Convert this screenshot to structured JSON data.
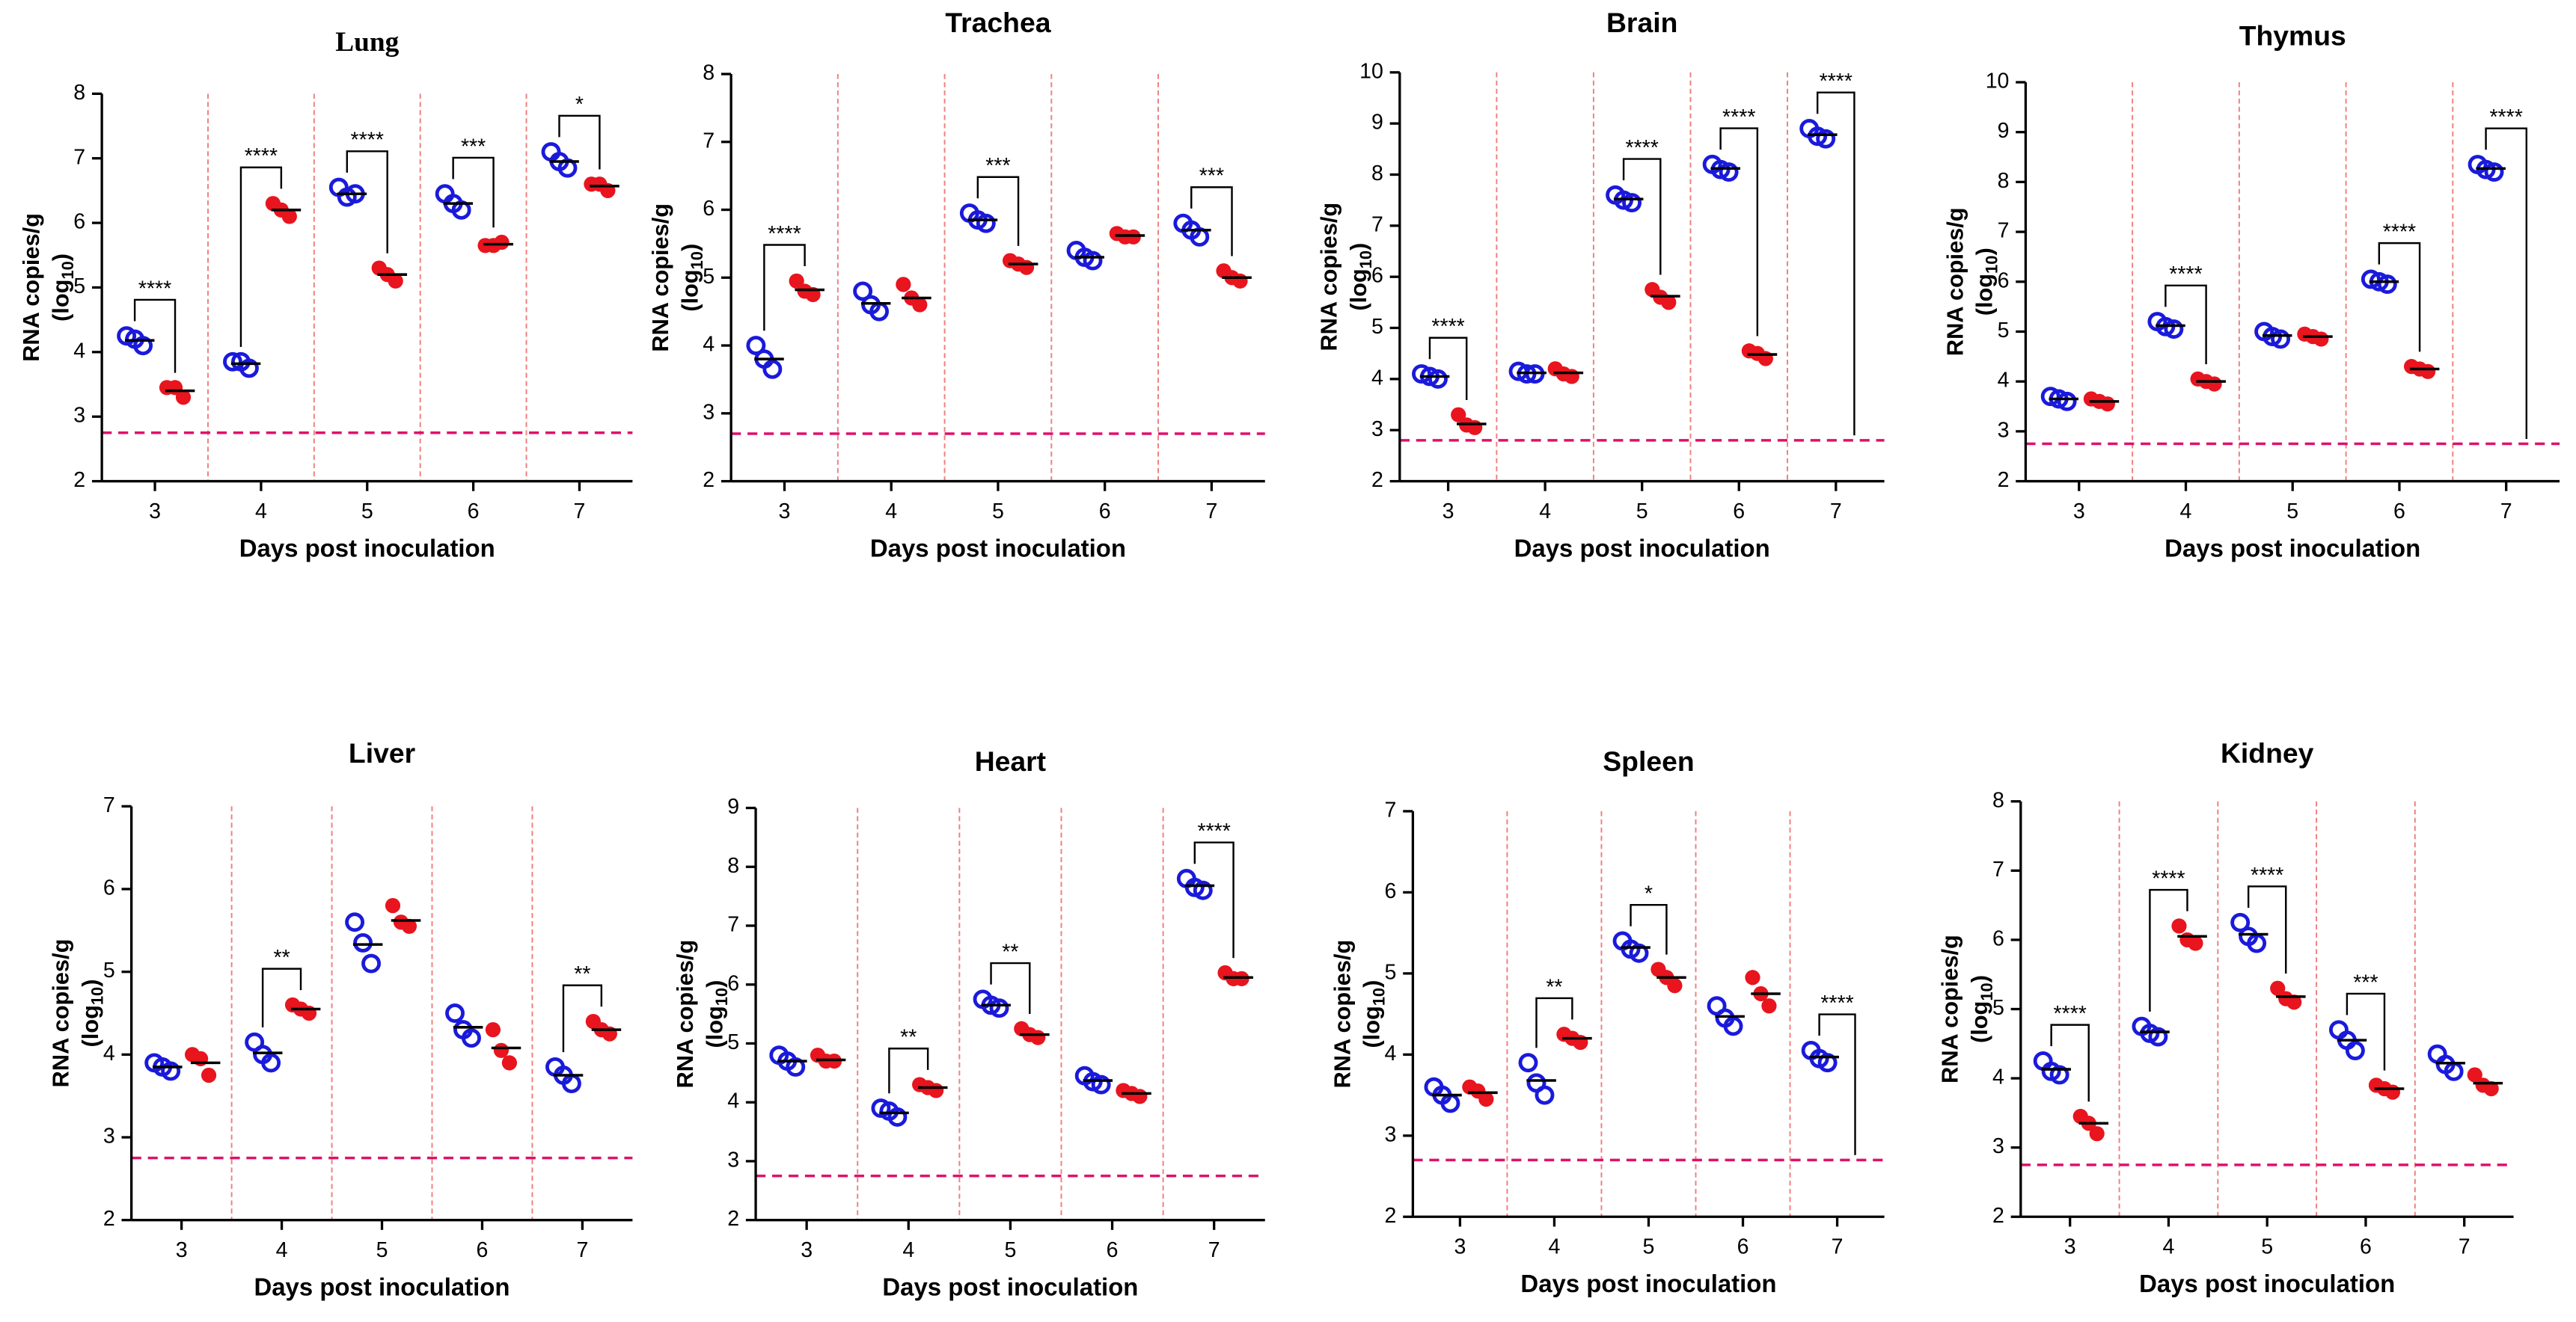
{
  "chart_data": [
    {
      "type": "dotplot",
      "title": "Lung",
      "xlabel": "Days post inoculation",
      "ylabel": {
        "line1": "RNA copies/g",
        "line2": "(log",
        "sub": "10",
        "end": ")"
      },
      "categories": [
        "3",
        "4",
        "5",
        "6",
        "7"
      ],
      "ylim": [
        2,
        8
      ],
      "yticks": [
        2,
        3,
        4,
        5,
        6,
        7,
        8
      ],
      "limit": 2.75,
      "series": [
        {
          "color": "#1a1adc",
          "marker": "open",
          "values": [
            [
              4.25,
              4.1,
              4.2
            ],
            [
              3.85,
              3.75,
              3.85
            ],
            [
              6.55,
              6.45,
              6.4
            ],
            [
              6.45,
              6.2,
              6.3
            ],
            [
              7.1,
              6.85,
              6.95
            ]
          ],
          "means": [
            4.18,
            3.82,
            6.45,
            6.3,
            6.95
          ]
        },
        {
          "color": "#e8141e",
          "marker": "filled",
          "values": [
            [
              3.45,
              3.3,
              3.45
            ],
            [
              6.3,
              6.1,
              6.2
            ],
            [
              5.3,
              5.1,
              5.2
            ],
            [
              5.65,
              5.7,
              5.65
            ],
            [
              6.6,
              6.5,
              6.6
            ]
          ],
          "means": [
            3.4,
            6.2,
            5.2,
            5.67,
            6.57
          ]
        }
      ],
      "significance": [
        "****",
        "****",
        "****",
        "***",
        "*"
      ]
    },
    {
      "type": "dotplot",
      "title": "Trachea",
      "xlabel": "Days post inoculation",
      "ylabel": {
        "line1": "RNA copies/g",
        "line2": "(log",
        "sub": "10",
        "end": ")"
      },
      "categories": [
        "3",
        "4",
        "5",
        "6",
        "7"
      ],
      "ylim": [
        2,
        8
      ],
      "yticks": [
        2,
        3,
        4,
        5,
        6,
        7,
        8
      ],
      "limit": 2.7,
      "series": [
        {
          "color": "#1a1adc",
          "marker": "open",
          "values": [
            [
              4.0,
              3.65,
              3.8
            ],
            [
              4.8,
              4.5,
              4.6
            ],
            [
              5.95,
              5.8,
              5.85
            ],
            [
              5.4,
              5.25,
              5.3
            ],
            [
              5.8,
              5.6,
              5.7
            ]
          ],
          "means": [
            3.8,
            4.62,
            5.85,
            5.3,
            5.7
          ]
        },
        {
          "color": "#e8141e",
          "marker": "filled",
          "values": [
            [
              4.95,
              4.75,
              4.8
            ],
            [
              4.9,
              4.6,
              4.7
            ],
            [
              5.25,
              5.15,
              5.2
            ],
            [
              5.65,
              5.6,
              5.6
            ],
            [
              5.1,
              4.95,
              5.0
            ]
          ],
          "means": [
            4.82,
            4.7,
            5.2,
            5.62,
            5.0
          ]
        }
      ],
      "significance": [
        "****",
        null,
        "***",
        null,
        "***"
      ]
    },
    {
      "type": "dotplot",
      "title": "Brain",
      "xlabel": "Days post inoculation",
      "ylabel": {
        "line1": "RNA copies/g",
        "line2": "(log",
        "sub": "10",
        "end": ")"
      },
      "categories": [
        "3",
        "4",
        "5",
        "6",
        "7"
      ],
      "ylim": [
        2,
        10
      ],
      "yticks": [
        2,
        3,
        4,
        5,
        6,
        7,
        8,
        9,
        10
      ],
      "limit": 2.8,
      "series": [
        {
          "color": "#1a1adc",
          "marker": "open",
          "values": [
            [
              4.1,
              4.0,
              4.05
            ],
            [
              4.15,
              4.1,
              4.1
            ],
            [
              7.6,
              7.45,
              7.5
            ],
            [
              8.2,
              8.05,
              8.1
            ],
            [
              8.9,
              8.7,
              8.75
            ]
          ],
          "means": [
            4.05,
            4.12,
            7.52,
            8.12,
            8.78
          ]
        },
        {
          "color": "#e8141e",
          "marker": "filled",
          "values": [
            [
              3.3,
              3.05,
              3.1
            ],
            [
              4.2,
              4.05,
              4.1
            ],
            [
              5.75,
              5.5,
              5.6
            ],
            [
              4.55,
              4.4,
              4.5
            ],
            null
          ],
          "means": [
            3.12,
            4.12,
            5.62,
            4.48,
            null
          ]
        }
      ],
      "significance": [
        "****",
        null,
        "****",
        "****",
        "****"
      ]
    },
    {
      "type": "dotplot",
      "title": "Thymus",
      "xlabel": "Days post inoculation",
      "ylabel": {
        "line1": "RNA copies/g",
        "line2": "(log",
        "sub": "10",
        "end": ")"
      },
      "categories": [
        "3",
        "4",
        "5",
        "6",
        "7"
      ],
      "ylim": [
        2,
        10
      ],
      "yticks": [
        2,
        3,
        4,
        5,
        6,
        7,
        8,
        9,
        10
      ],
      "limit": 2.75,
      "series": [
        {
          "color": "#1a1adc",
          "marker": "open",
          "values": [
            [
              3.7,
              3.6,
              3.65
            ],
            [
              5.2,
              5.05,
              5.1
            ],
            [
              5.0,
              4.85,
              4.9
            ],
            [
              6.05,
              5.95,
              6.0
            ],
            [
              8.35,
              8.2,
              8.25
            ]
          ],
          "means": [
            3.65,
            5.12,
            4.92,
            6.0,
            8.27
          ]
        },
        {
          "color": "#e8141e",
          "marker": "filled",
          "values": [
            [
              3.65,
              3.55,
              3.6
            ],
            [
              4.05,
              3.95,
              4.0
            ],
            [
              4.95,
              4.85,
              4.9
            ],
            [
              4.3,
              4.2,
              4.25
            ],
            null
          ],
          "means": [
            3.6,
            4.0,
            4.9,
            4.25,
            null
          ]
        }
      ],
      "significance": [
        null,
        "****",
        null,
        "****",
        "****"
      ]
    },
    {
      "type": "dotplot",
      "title": "Liver",
      "xlabel": "Days post inoculation",
      "ylabel": {
        "line1": "RNA copies/g",
        "line2": "(log",
        "sub": "10",
        "end": ")"
      },
      "categories": [
        "3",
        "4",
        "5",
        "6",
        "7"
      ],
      "ylim": [
        2,
        7
      ],
      "yticks": [
        2,
        3,
        4,
        5,
        6,
        7
      ],
      "limit": 2.75,
      "series": [
        {
          "color": "#1a1adc",
          "marker": "open",
          "values": [
            [
              3.9,
              3.8,
              3.85
            ],
            [
              4.15,
              3.9,
              4.0
            ],
            [
              5.6,
              5.1,
              5.35
            ],
            [
              4.5,
              4.2,
              4.3
            ],
            [
              3.85,
              3.65,
              3.75
            ]
          ],
          "means": [
            3.85,
            4.02,
            5.33,
            4.33,
            3.75
          ]
        },
        {
          "color": "#e8141e",
          "marker": "filled",
          "values": [
            [
              4.0,
              3.75,
              3.95
            ],
            [
              4.6,
              4.5,
              4.55
            ],
            [
              5.8,
              5.55,
              5.6
            ],
            [
              4.3,
              3.9,
              4.05
            ],
            [
              4.4,
              4.25,
              4.3
            ]
          ],
          "means": [
            3.9,
            4.55,
            5.62,
            4.08,
            4.3
          ]
        }
      ],
      "significance": [
        null,
        "**",
        null,
        null,
        "**"
      ]
    },
    {
      "type": "dotplot",
      "title": "Heart",
      "xlabel": "Days post inoculation",
      "ylabel": {
        "line1": "RNA copies/g",
        "line2": "(log",
        "sub": "10",
        "end": ")"
      },
      "categories": [
        "3",
        "4",
        "5",
        "6",
        "7"
      ],
      "ylim": [
        2,
        9
      ],
      "yticks": [
        2,
        3,
        4,
        5,
        6,
        7,
        8,
        9
      ],
      "limit": 2.75,
      "series": [
        {
          "color": "#1a1adc",
          "marker": "open",
          "values": [
            [
              4.8,
              4.6,
              4.7
            ],
            [
              3.9,
              3.75,
              3.85
            ],
            [
              5.75,
              5.6,
              5.65
            ],
            [
              4.45,
              4.3,
              4.35
            ],
            [
              7.8,
              7.6,
              7.65
            ]
          ],
          "means": [
            4.7,
            3.82,
            5.65,
            4.37,
            7.68
          ]
        },
        {
          "color": "#e8141e",
          "marker": "filled",
          "values": [
            [
              4.8,
              4.7,
              4.7
            ],
            [
              4.3,
              4.2,
              4.25
            ],
            [
              5.25,
              5.1,
              5.15
            ],
            [
              4.2,
              4.1,
              4.15
            ],
            [
              6.2,
              6.1,
              6.1
            ]
          ],
          "means": [
            4.72,
            4.25,
            5.15,
            4.15,
            6.12
          ]
        }
      ],
      "significance": [
        null,
        "**",
        "**",
        null,
        "****"
      ]
    },
    {
      "type": "dotplot",
      "title": "Spleen",
      "xlabel": "Days post inoculation",
      "ylabel": {
        "line1": "RNA copies/g",
        "line2": "(log",
        "sub": "10",
        "end": ")"
      },
      "categories": [
        "3",
        "4",
        "5",
        "6",
        "7"
      ],
      "ylim": [
        2,
        7
      ],
      "yticks": [
        2,
        3,
        4,
        5,
        6,
        7
      ],
      "limit": 2.7,
      "series": [
        {
          "color": "#1a1adc",
          "marker": "open",
          "values": [
            [
              3.6,
              3.4,
              3.5
            ],
            [
              3.9,
              3.5,
              3.65
            ],
            [
              5.4,
              5.25,
              5.3
            ],
            [
              4.6,
              4.35,
              4.45
            ],
            [
              4.05,
              3.9,
              3.95
            ]
          ],
          "means": [
            3.5,
            3.68,
            5.32,
            4.47,
            3.97
          ]
        },
        {
          "color": "#e8141e",
          "marker": "filled",
          "values": [
            [
              3.6,
              3.45,
              3.55
            ],
            [
              4.25,
              4.15,
              4.2
            ],
            [
              5.05,
              4.85,
              4.95
            ],
            [
              4.95,
              4.6,
              4.75
            ],
            null
          ],
          "means": [
            3.53,
            4.2,
            4.95,
            4.75,
            null
          ]
        }
      ],
      "significance": [
        null,
        "**",
        "*",
        null,
        "****"
      ]
    },
    {
      "type": "dotplot",
      "title": "Kidney",
      "xlabel": "Days post inoculation",
      "ylabel": {
        "line1": "RNA copies/g",
        "line2": "(log",
        "sub": "10",
        "end": ")"
      },
      "categories": [
        "3",
        "4",
        "5",
        "6",
        "7"
      ],
      "ylim": [
        2,
        8
      ],
      "yticks": [
        2,
        3,
        4,
        5,
        6,
        7,
        8
      ],
      "limit": 2.75,
      "series": [
        {
          "color": "#1a1adc",
          "marker": "open",
          "values": [
            [
              4.25,
              4.05,
              4.1
            ],
            [
              4.75,
              4.6,
              4.65
            ],
            [
              6.25,
              5.95,
              6.05
            ],
            [
              4.7,
              4.4,
              4.55
            ],
            [
              4.35,
              4.1,
              4.2
            ]
          ],
          "means": [
            4.13,
            4.67,
            6.08,
            4.55,
            4.22
          ]
        },
        {
          "color": "#e8141e",
          "marker": "filled",
          "values": [
            [
              3.45,
              3.2,
              3.35
            ],
            [
              6.2,
              5.95,
              6.0
            ],
            [
              5.3,
              5.1,
              5.15
            ],
            [
              3.9,
              3.8,
              3.85
            ],
            [
              4.05,
              3.85,
              3.9
            ]
          ],
          "means": [
            3.35,
            6.05,
            5.18,
            3.85,
            3.93
          ]
        }
      ],
      "significance": [
        "****",
        "****",
        "****",
        "***",
        null
      ]
    }
  ]
}
